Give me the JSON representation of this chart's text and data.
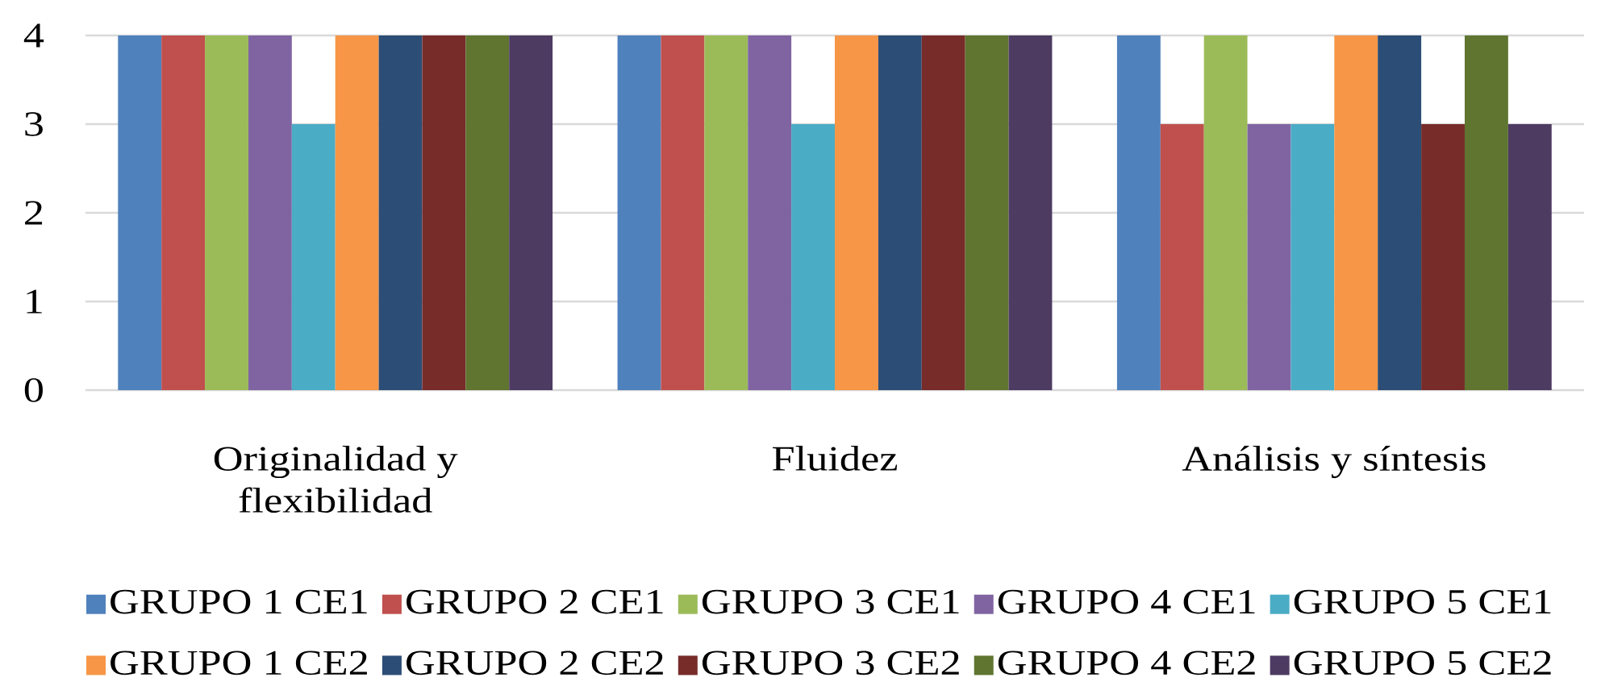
{
  "chart_data": {
    "type": "bar",
    "categories": [
      "Originalidad y flexibilidad",
      "Fluidez",
      "Análisis y síntesis"
    ],
    "series": [
      {
        "name": "GRUPO 1 CE1",
        "color": "#4f81bd",
        "values": [
          4,
          4,
          4
        ]
      },
      {
        "name": "GRUPO 2 CE1",
        "color": "#c0504d",
        "values": [
          4,
          4,
          3
        ]
      },
      {
        "name": "GRUPO 3 CE1",
        "color": "#9bbb59",
        "values": [
          4,
          4,
          4
        ]
      },
      {
        "name": "GRUPO 4 CE1",
        "color": "#8064a2",
        "values": [
          4,
          4,
          3
        ]
      },
      {
        "name": "GRUPO 5 CE1",
        "color": "#4bacc6",
        "values": [
          3,
          3,
          3
        ]
      },
      {
        "name": "GRUPO 1 CE2",
        "color": "#f79646",
        "values": [
          4,
          4,
          4
        ]
      },
      {
        "name": "GRUPO 2 CE2",
        "color": "#2c4d75",
        "values": [
          4,
          4,
          4
        ]
      },
      {
        "name": "GRUPO 3 CE2",
        "color": "#772c2a",
        "values": [
          4,
          4,
          3
        ]
      },
      {
        "name": "GRUPO 4 CE2",
        "color": "#5f7530",
        "values": [
          4,
          4,
          4
        ]
      },
      {
        "name": "GRUPO 5 CE2",
        "color": "#4d3b62",
        "values": [
          4,
          4,
          3
        ]
      }
    ],
    "ylim": [
      0,
      4
    ],
    "yticks": [
      0,
      1,
      2,
      3,
      4
    ],
    "grid": "y",
    "legend": "bottom"
  }
}
